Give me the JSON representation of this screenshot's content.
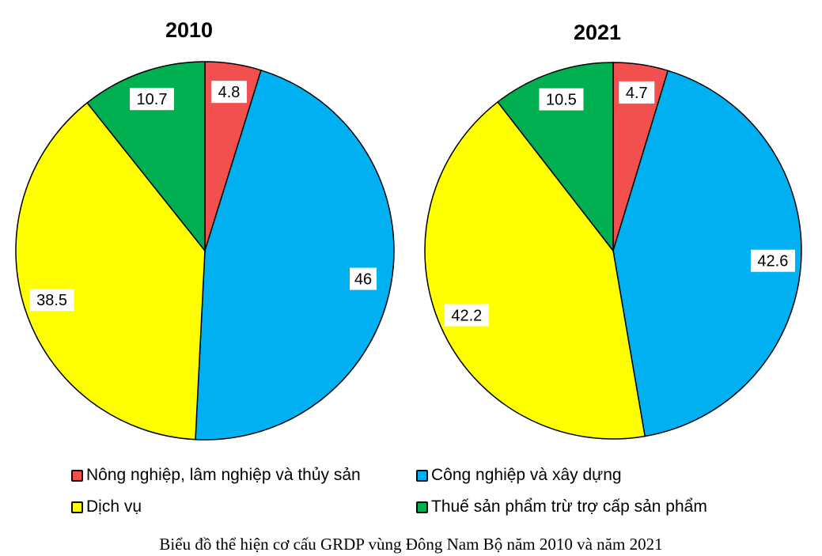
{
  "chart_data": [
    {
      "type": "pie",
      "title": "2010",
      "categories": [
        "Nông nghiệp, lâm nghiệp và thủy sản",
        "Công nghiệp và xây dựng",
        "Dịch vụ",
        "Thuế sản phẩm trừ trợ cấp sản phẩm"
      ],
      "values": [
        4.8,
        46,
        38.5,
        10.7
      ],
      "data_labels": [
        "4.8",
        "46",
        "38.5",
        "10.7"
      ]
    },
    {
      "type": "pie",
      "title": "2021",
      "categories": [
        "Nông nghiệp, lâm nghiệp và thủy sản",
        "Công nghiệp và xây dựng",
        "Dịch vụ",
        "Thuế sản phẩm trừ trợ cấp sản phẩm"
      ],
      "values": [
        4.7,
        42.6,
        42.2,
        10.5
      ],
      "data_labels": [
        "4.7",
        "42.6",
        "42.2",
        "10.5"
      ]
    }
  ],
  "legend": [
    {
      "label": "Nông nghiệp, lâm nghiệp và thủy sản",
      "color": "#F24F4F"
    },
    {
      "label": "Công nghiệp và xây dựng",
      "color": "#00B0F0"
    },
    {
      "label": "Dịch vụ",
      "color": "#FFFF00"
    },
    {
      "label": "Thuế sản phẩm trừ trợ cấp sản phẩm",
      "color": "#00B050"
    }
  ],
  "caption": "Biểu đồ thể hiện cơ cấu GRDP vùng Đông Nam Bộ năm 2010 và năm 2021"
}
